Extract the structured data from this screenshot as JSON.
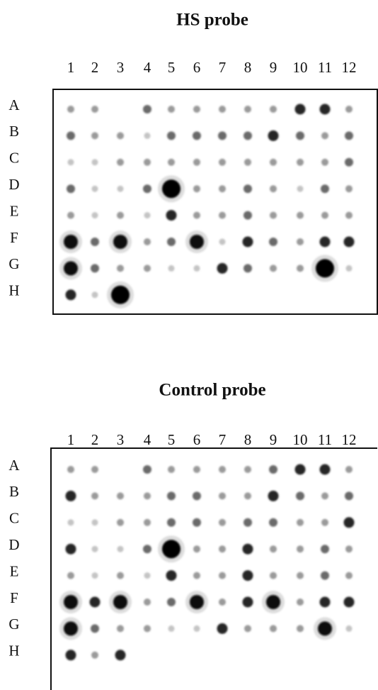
{
  "panels": [
    {
      "title": "HS probe",
      "columns": [
        "1",
        "2",
        "3",
        "4",
        "5",
        "6",
        "7",
        "8",
        "9",
        "10",
        "11",
        "12"
      ],
      "rows": [
        "A",
        "B",
        "C",
        "D",
        "E",
        "F",
        "G",
        "H"
      ]
    },
    {
      "title": "Control probe",
      "columns": [
        "1",
        "2",
        "3",
        "4",
        "5",
        "6",
        "7",
        "8",
        "9",
        "10",
        "11",
        "12"
      ],
      "rows": [
        "A",
        "B",
        "C",
        "D",
        "E",
        "F",
        "G",
        "H"
      ]
    }
  ]
}
